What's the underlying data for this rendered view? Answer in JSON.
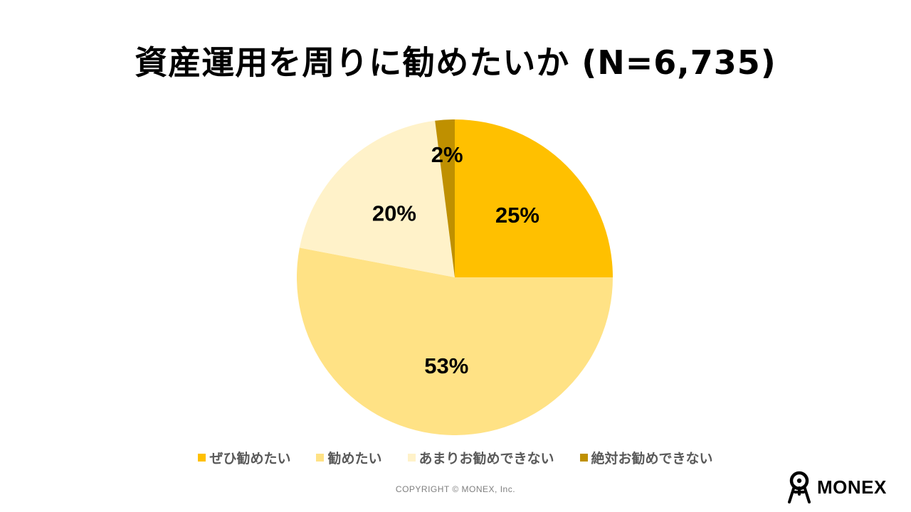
{
  "chart_data": {
    "type": "pie",
    "title": "資産運用を周りに勧めたいか (N=6,735)",
    "slices": [
      {
        "name": "ぜひ勧めたい",
        "value": 25,
        "label": "25%",
        "color": "#FFC000"
      },
      {
        "name": "勧めたい",
        "value": 53,
        "label": "53%",
        "color": "#FFE285"
      },
      {
        "name": "あまりお勧めできない",
        "value": 20,
        "label": "20%",
        "color": "#FFF2C9"
      },
      {
        "name": "絶対お勧めできない",
        "value": 2,
        "label": "2%",
        "color": "#BF9000"
      }
    ],
    "legend_position": "bottom"
  },
  "footer": {
    "copyright": "COPYRIGHT © MONEX, Inc.",
    "logo_text": "MONEX"
  }
}
